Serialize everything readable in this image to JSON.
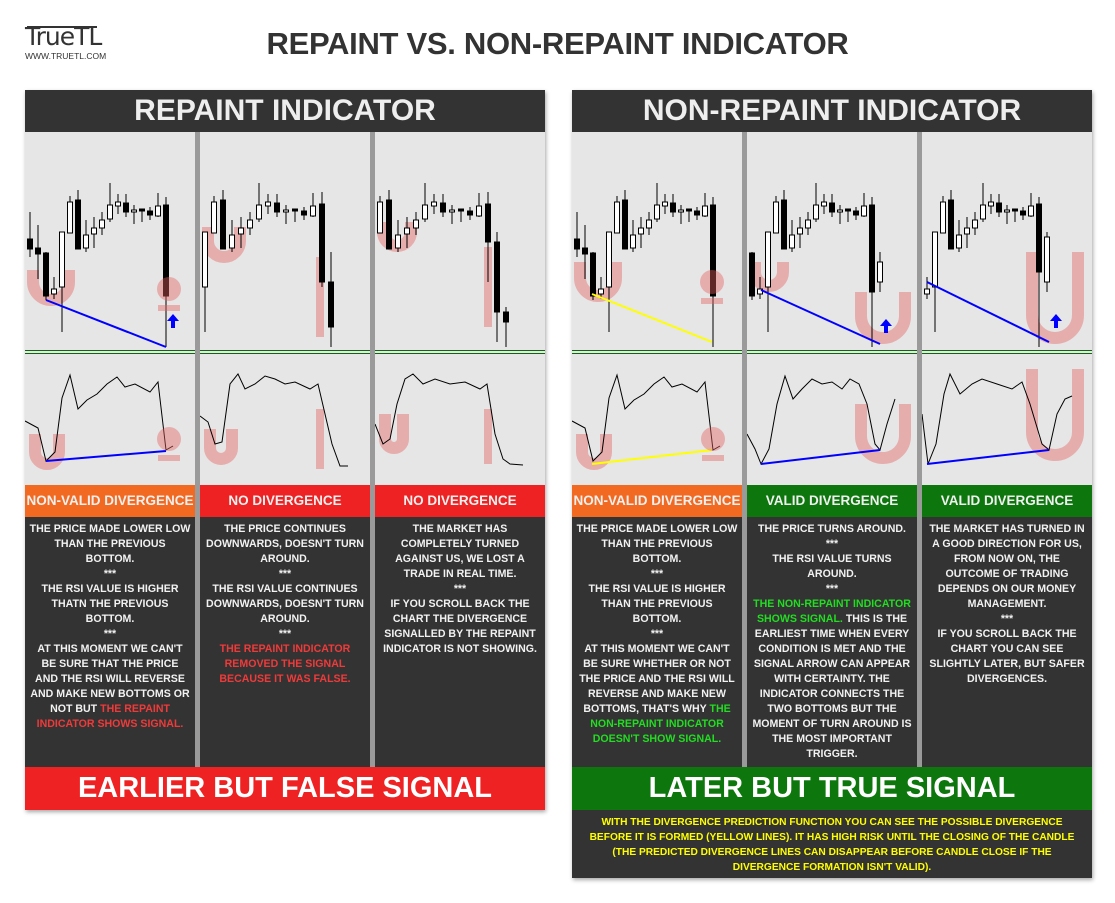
{
  "header": {
    "logo": "TrueTL",
    "website": "WWW.TRUETL.COM",
    "title": "REPAINT VS. NON-REPAINT INDICATOR"
  },
  "colors": {
    "card_dark": "#333333",
    "orange": "#f26a22",
    "red": "#ee2222",
    "green": "#0d760d",
    "red_text": "#f03a3a",
    "green_text": "#22dd22",
    "divergence_line": "#0000ff",
    "prediction_line": "#ffff00",
    "highlight_pink": "#eeb0b0"
  },
  "sections": [
    {
      "title": "REPAINT INDICATOR",
      "footer": "EARLIER BUT FALSE SIGNAL",
      "footer_color": "#ee2222",
      "columns": [
        {
          "label": "NON-VALID DIVERGENCE",
          "label_color": "#f26a22",
          "body": [
            [
              {
                "text": "THE PRICE MADE LOWER LOW THAN THE PREVIOUS BOTTOM."
              }
            ],
            [
              {
                "text": "***"
              }
            ],
            [
              {
                "text": "THE RSI VALUE IS HIGHER THATN THE PREVIOUS BOTTOM."
              }
            ],
            [
              {
                "text": "***"
              }
            ],
            [
              {
                "text": "AT THIS MOMENT WE CAN'T BE SURE THAT THE PRICE AND THE RSI WILL REVERSE AND MAKE NEW BOTTOMS OR NOT BUT "
              },
              {
                "text": "THE REPAINT INDICATOR SHOWS SIGNAL.",
                "color": "#f03a3a"
              }
            ]
          ]
        },
        {
          "label": "NO DIVERGENCE",
          "label_color": "#ee2222",
          "body": [
            [
              {
                "text": "THE PRICE CONTINUES DOWNWARDS, DOESN'T TURN AROUND."
              }
            ],
            [
              {
                "text": "***"
              }
            ],
            [
              {
                "text": "THE RSI VALUE CONTINUES DOWNWARDS, DOESN'T TURN AROUND."
              }
            ],
            [
              {
                "text": "***"
              }
            ],
            [
              {
                "text": "THE REPAINT INDICATOR REMOVED THE SIGNAL BECAUSE IT WAS FALSE.",
                "color": "#f03a3a"
              }
            ]
          ]
        },
        {
          "label": "NO DIVERGENCE",
          "label_color": "#ee2222",
          "body": [
            [
              {
                "text": "THE MARKET HAS COMPLETELY TURNED AGAINST US, WE LOST A TRADE IN REAL TIME."
              }
            ],
            [
              {
                "text": "***"
              }
            ],
            [
              {
                "text": "IF YOU SCROLL BACK THE CHART THE DIVERGENCE SIGNALLED BY THE REPAINT INDICATOR IS NOT SHOWING."
              }
            ]
          ]
        }
      ]
    },
    {
      "title": "NON-REPAINT INDICATOR",
      "footer": "LATER BUT TRUE SIGNAL",
      "footer_color": "#0d760d",
      "note": "WITH THE DIVERGENCE PREDICTION FUNCTION YOU CAN SEE THE POSSIBLE DIVERGENCE BEFORE IT IS  FORMED (YELLOW LINES). IT HAS HIGH RISK UNTIL THE CLOSING OF THE CANDLE (THE PREDICTED DIVERGENCE LINES CAN DISAPPEAR BEFORE CANDLE CLOSE IF THE DIVERGENCE FORMATION ISN'T VALID).",
      "columns": [
        {
          "label": "NON-VALID DIVERGENCE",
          "label_color": "#f26a22",
          "body": [
            [
              {
                "text": "THE PRICE MADE LOWER LOW THAN THE PREVIOUS BOTTOM."
              }
            ],
            [
              {
                "text": "***"
              }
            ],
            [
              {
                "text": "THE RSI VALUE IS HIGHER THAN THE PREVIOUS BOTTOM."
              }
            ],
            [
              {
                "text": "***"
              }
            ],
            [
              {
                "text": "AT THIS MOMENT WE CAN'T BE SURE WHETHER OR NOT THE PRICE AND THE RSI WILL REVERSE AND MAKE NEW BOTTOMS, THAT'S WHY "
              },
              {
                "text": "THE NON-REPAINT INDICATOR DOESN'T SHOW SIGNAL.",
                "color": "#22dd22"
              }
            ]
          ]
        },
        {
          "label": "VALID DIVERGENCE",
          "label_color": "#0d760d",
          "body": [
            [
              {
                "text": "THE PRICE TURNS AROUND."
              }
            ],
            [
              {
                "text": "***"
              }
            ],
            [
              {
                "text": "THE RSI VALUE TURNS AROUND."
              }
            ],
            [
              {
                "text": "***"
              }
            ],
            [
              {
                "text": "THE NON-REPAINT INDICATOR SHOWS SIGNAL.",
                "color": "#22dd22"
              },
              {
                "text": " THIS IS THE EARLIEST TIME WHEN EVERY CONDITION IS MET AND THE SIGNAL ARROW CAN APPEAR WITH CERTAINTY.  THE INDICATOR CONNECTS THE TWO BOTTOMS BUT THE MOMENT OF TURN AROUND IS THE MOST IMPORTANT TRIGGER."
              }
            ]
          ]
        },
        {
          "label": "VALID DIVERGENCE",
          "label_color": "#0d760d",
          "body": [
            [
              {
                "text": "THE MARKET HAS TURNED IN A GOOD DIRECTION FOR US, FROM NOW ON, THE OUTCOME OF TRADING DEPENDS ON OUR MONEY MANAGEMENT."
              }
            ],
            [
              {
                "text": "***"
              }
            ],
            [
              {
                "text": "IF YOU SCROLL BACK THE CHART YOU CAN SEE SLIGHTLY LATER, BUT SAFER DIVERGENCES."
              }
            ]
          ]
        }
      ]
    }
  ]
}
